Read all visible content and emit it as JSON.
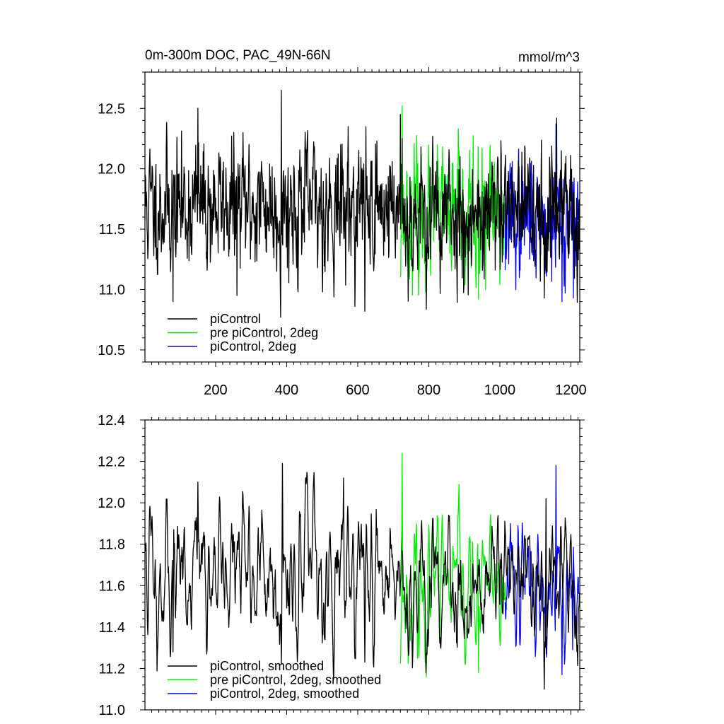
{
  "figure": {
    "title_left": "0m-300m DOC, PAC_49N-66N",
    "title_right": "mmol/m^3"
  },
  "chart_data": [
    {
      "type": "line",
      "panel": "top",
      "x_domain": [
        1,
        1225
      ],
      "ylim": [
        10.4,
        12.8
      ],
      "x_ticks": [
        200,
        400,
        600,
        800,
        1000,
        1200
      ],
      "x_tick_labels": [
        "200",
        "400",
        "600",
        "800",
        "1000",
        "1200"
      ],
      "y_ticks": [
        10.5,
        11.0,
        11.5,
        12.0,
        12.5
      ],
      "y_tick_labels": [
        "10.5",
        "11.0",
        "11.5",
        "12.0",
        "12.5"
      ],
      "grid": false,
      "legend_position": "bottom-left",
      "series": [
        {
          "name": "piControl",
          "color": "#000000",
          "x_start": 1,
          "x_end": 725,
          "mean": 11.68,
          "sd": 0.27,
          "seed": 11,
          "smooth": 0,
          "peaks": [
            [
              150,
              12.5
            ],
            [
              385,
              12.65
            ],
            [
              720,
              12.45
            ]
          ],
          "troughs": [
            [
              80,
              10.9
            ],
            [
              260,
              10.95
            ],
            [
              383,
              10.77
            ],
            [
              620,
              10.82
            ]
          ]
        },
        {
          "name": "pre piControl, 2deg",
          "color": "#00ee00",
          "x_start": 720,
          "x_end": 1020,
          "mean": 11.62,
          "sd": 0.27,
          "seed": 23,
          "smooth": 0,
          "peaks": [
            [
              725,
              12.52
            ]
          ],
          "troughs": [
            [
              940,
              10.92
            ],
            [
              960,
              11.0
            ]
          ]
        },
        {
          "name": "piControl, 2deg",
          "color": "#0000ff",
          "x_start": 1015,
          "x_end": 1222,
          "mean": 11.58,
          "sd": 0.25,
          "seed": 37,
          "smooth": 0,
          "peaks": [
            [
              1158,
              12.37
            ]
          ],
          "troughs": [
            [
              1175,
              10.9
            ],
            [
              1207,
              10.93
            ]
          ]
        },
        {
          "name": "",
          "color": "#000000",
          "x_start": 725,
          "x_end": 1225,
          "mean": 11.62,
          "sd": 0.28,
          "seed": 53,
          "smooth": 0,
          "peaks": [
            [
              660,
              12.3
            ],
            [
              1160,
              12.42
            ]
          ],
          "troughs": [
            [
              1125,
              10.93
            ]
          ]
        }
      ]
    },
    {
      "type": "line",
      "panel": "bottom",
      "x_domain": [
        1,
        1225
      ],
      "ylim": [
        11.0,
        12.4
      ],
      "x_ticks": [
        200,
        400,
        600,
        800,
        1000,
        1200
      ],
      "x_tick_labels": [],
      "y_ticks": [
        11.0,
        11.2,
        11.4,
        11.6,
        11.8,
        12.0,
        12.2,
        12.4
      ],
      "y_tick_labels": [
        "11.0",
        "11.2",
        "11.4",
        "11.6",
        "11.8",
        "12.0",
        "12.2",
        "12.4"
      ],
      "grid": false,
      "legend_position": "bottom-left",
      "series": [
        {
          "name": "piControl, smoothed",
          "color": "#000000",
          "x_start": 1,
          "x_end": 725,
          "mean": 11.66,
          "sd": 0.19,
          "seed": 11,
          "smooth": 2,
          "peaks": [
            [
              150,
              12.1
            ],
            [
              388,
              12.19
            ],
            [
              560,
              12.12
            ]
          ],
          "troughs": [
            [
              80,
              11.28
            ],
            [
              385,
              11.22
            ],
            [
              620,
              11.23
            ]
          ]
        },
        {
          "name": "pre piControl, 2deg, smoothed",
          "color": "#00ee00",
          "x_start": 720,
          "x_end": 1020,
          "mean": 11.6,
          "sd": 0.17,
          "seed": 23,
          "smooth": 2,
          "peaks": [
            [
              725,
              12.24
            ]
          ],
          "troughs": [
            [
              940,
              11.18
            ],
            [
              768,
              11.25
            ]
          ]
        },
        {
          "name": "piControl, 2deg, smoothed",
          "color": "#0000ff",
          "x_start": 1015,
          "x_end": 1222,
          "mean": 11.58,
          "sd": 0.16,
          "seed": 37,
          "smooth": 2,
          "peaks": [
            [
              1158,
              12.18
            ]
          ],
          "troughs": [
            [
              1175,
              11.17
            ],
            [
              1205,
              11.29
            ]
          ]
        },
        {
          "name": "",
          "color": "#000000",
          "x_start": 725,
          "x_end": 1225,
          "mean": 11.6,
          "sd": 0.18,
          "seed": 53,
          "smooth": 2,
          "peaks": [
            [
              1130,
              12.02
            ],
            [
              660,
              12.0
            ]
          ],
          "troughs": [
            [
              1125,
              11.1
            ]
          ]
        }
      ]
    }
  ]
}
